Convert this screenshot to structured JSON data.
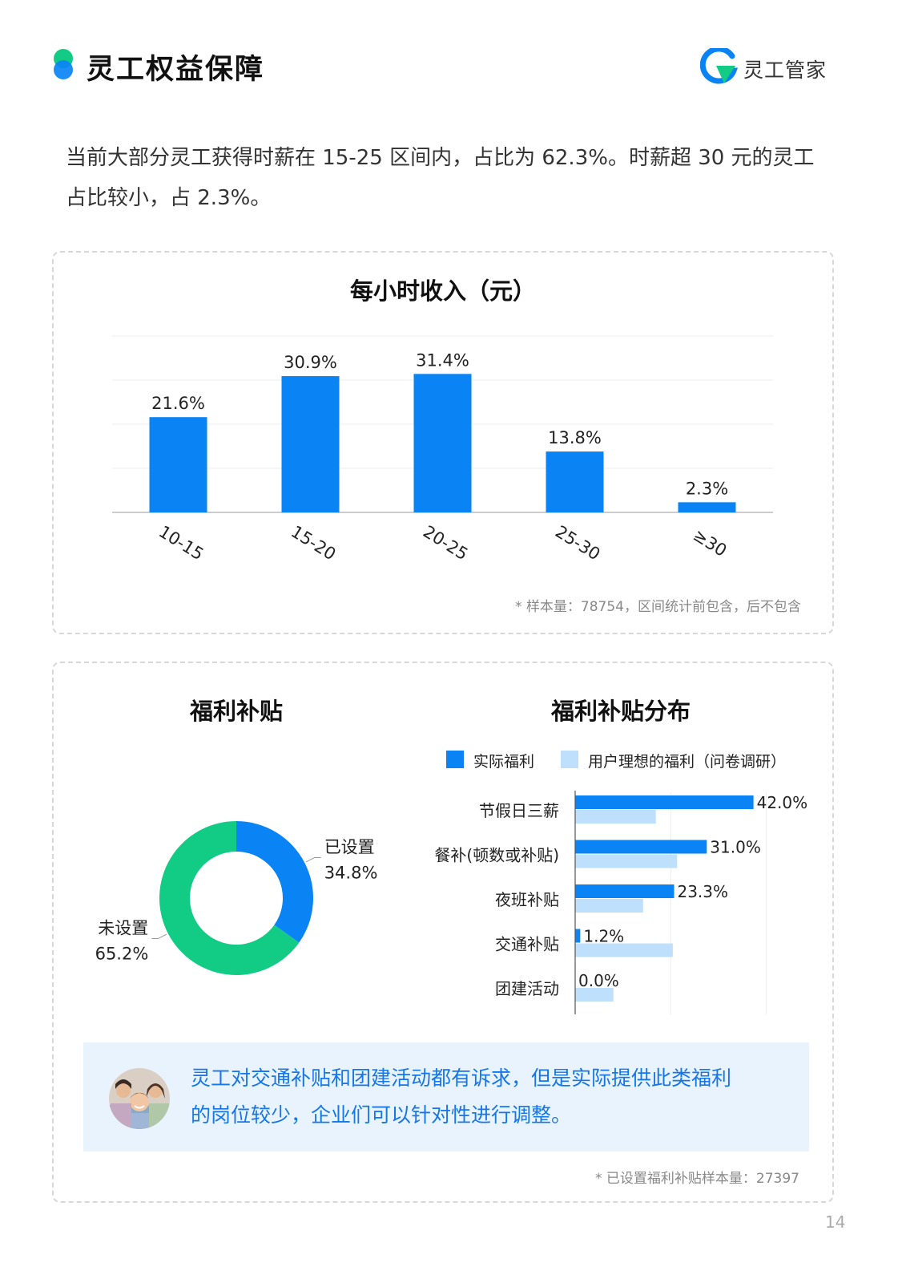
{
  "header": {
    "section_title": "灵工权益保障",
    "brand_name": "灵工管家"
  },
  "intro_text": "当前大部分灵工获得时薪在 15-25 区间内，占比为 62.3%。时薪超 30 元的灵工占比较小，占 2.3%。",
  "colors": {
    "primary_blue": "#0a84f5",
    "light_blue": "#bfe0fc",
    "green": "#12cc85",
    "callout_bg": "#e9f3fd",
    "callout_text": "#1677e8"
  },
  "chart_data": [
    {
      "type": "bar",
      "title": "每小时收入（元）",
      "categories": [
        "10-15",
        "15-20",
        "20-25",
        "25-30",
        "≥30"
      ],
      "values": [
        21.6,
        30.9,
        31.4,
        13.8,
        2.3
      ],
      "value_labels": [
        "21.6%",
        "30.9%",
        "31.4%",
        "13.8%",
        "2.3%"
      ],
      "xlabel": "",
      "ylabel": "",
      "ylim": [
        0,
        40
      ],
      "grid": true,
      "note": "* 样本量：78754，区间统计前包含，后不包含"
    },
    {
      "type": "pie",
      "title": "福利补贴",
      "donut": true,
      "slices": [
        {
          "label": "已设置",
          "value": 34.8,
          "value_label": "34.8%",
          "color": "#0a84f5"
        },
        {
          "label": "未设置",
          "value": 65.2,
          "value_label": "65.2%",
          "color": "#12cc85"
        }
      ]
    },
    {
      "type": "bar",
      "orientation": "horizontal",
      "title": "福利补贴分布",
      "legend_position": "top",
      "categories": [
        "节假日三薪",
        "餐补(顿数或补贴)",
        "夜班补贴",
        "交通补贴",
        "团建活动"
      ],
      "series": [
        {
          "name": "实际福利",
          "color": "#0a84f5",
          "values": [
            42.0,
            31.0,
            23.3,
            1.2,
            0.0
          ],
          "value_labels": [
            "42.0%",
            "31.0%",
            "23.3%",
            "1.2%",
            "0.0%"
          ]
        },
        {
          "name": "用户理想的福利（问卷调研）",
          "color": "#bfe0fc",
          "values": [
            19,
            24,
            16,
            23,
            9
          ]
        }
      ],
      "xlim": [
        0,
        50
      ],
      "grid": true
    }
  ],
  "callout": {
    "text_line1": "灵工对交通补贴和团建活动都有诉求，但是实际提供此类福利",
    "text_line2": "的岗位较少，企业们可以针对性进行调整。"
  },
  "footnote2": "* 已设置福利补贴样本量：27397",
  "page_number": "14"
}
